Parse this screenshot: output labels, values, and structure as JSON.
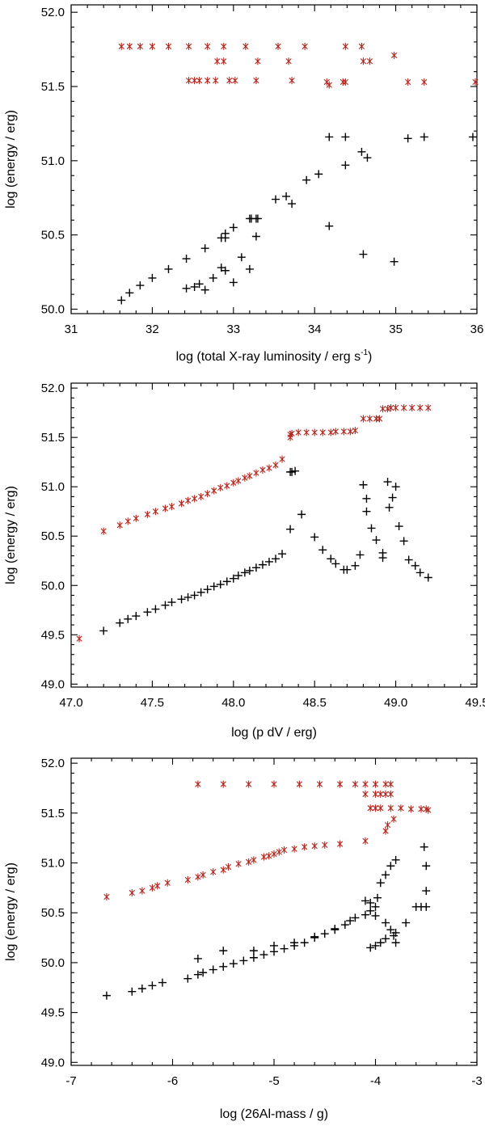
{
  "colors": {
    "series_star": "#b3261e",
    "series_plus": "#000000"
  },
  "chart_data": [
    {
      "type": "scatter",
      "title": "",
      "xlabel": "log (total X-ray luminosity / erg s",
      "xlabel_sup": "-1",
      "xlabel_end": ")",
      "ylabel": "log (energy / erg)",
      "xlim": [
        31,
        36
      ],
      "ylim": [
        49.97,
        52.05
      ],
      "xticks": [
        31,
        32,
        33,
        34,
        35,
        36
      ],
      "xtick_labels": [
        "31",
        "32",
        "33",
        "34",
        "35",
        "36"
      ],
      "yticks": [
        50.0,
        50.5,
        51.0,
        51.5,
        52.0
      ],
      "ytick_labels": [
        "50.0",
        "50.5",
        "51.0",
        "51.5",
        "52.0"
      ],
      "series": [
        {
          "name": "star",
          "marker": "star",
          "x": [
            31.62,
            31.72,
            31.85,
            32.0,
            32.2,
            32.45,
            32.68,
            32.88,
            33.15,
            33.55,
            33.88,
            34.38,
            34.58,
            32.8,
            32.88,
            33.3,
            33.68,
            34.6,
            34.68,
            34.98,
            32.45,
            32.52,
            32.58,
            32.68,
            32.78,
            32.95,
            33.02,
            33.28,
            33.72,
            34.15,
            34.18,
            34.35,
            34.38,
            35.15,
            35.35,
            35.98
          ],
          "y": [
            51.77,
            51.77,
            51.77,
            51.77,
            51.77,
            51.77,
            51.77,
            51.77,
            51.77,
            51.77,
            51.77,
            51.77,
            51.77,
            51.67,
            51.67,
            51.67,
            51.67,
            51.67,
            51.67,
            51.71,
            51.54,
            51.54,
            51.54,
            51.54,
            51.54,
            51.54,
            51.54,
            51.54,
            51.54,
            51.53,
            51.51,
            51.53,
            51.53,
            51.53,
            51.53,
            51.53
          ]
        },
        {
          "name": "plus",
          "marker": "plus",
          "x": [
            31.62,
            31.72,
            31.85,
            32.0,
            32.2,
            32.42,
            32.65,
            32.85,
            33.0,
            33.2,
            33.28,
            33.52,
            33.65,
            33.72,
            33.9,
            34.05,
            34.18,
            34.38,
            34.58,
            34.65,
            35.15,
            35.35,
            35.95,
            32.42,
            32.52,
            32.58,
            32.65,
            32.75,
            32.85,
            32.9,
            33.0,
            33.1,
            33.2,
            33.28,
            34.18,
            34.6,
            34.98,
            32.9,
            32.9,
            33.22,
            33.3,
            34.38
          ],
          "y": [
            50.06,
            50.11,
            50.16,
            50.21,
            50.27,
            50.34,
            50.41,
            50.48,
            50.55,
            50.61,
            50.61,
            50.74,
            50.76,
            50.71,
            50.87,
            50.91,
            51.16,
            51.16,
            51.06,
            51.02,
            51.15,
            51.16,
            51.16,
            50.14,
            50.15,
            50.17,
            50.13,
            50.21,
            50.28,
            50.26,
            50.18,
            50.35,
            50.27,
            50.49,
            50.56,
            50.37,
            50.32,
            50.48,
            50.51,
            50.61,
            50.61,
            50.97
          ]
        }
      ]
    },
    {
      "type": "scatter",
      "title": "",
      "xlabel": "log (p dV / erg)",
      "ylabel": "log (energy / erg)",
      "xlim": [
        47.0,
        49.5
      ],
      "ylim": [
        48.97,
        52.05
      ],
      "xticks": [
        47.0,
        47.5,
        48.0,
        48.5,
        49.0,
        49.5
      ],
      "xtick_labels": [
        "47.0",
        "47.5",
        "48.0",
        "48.5",
        "49.0",
        "49.5"
      ],
      "yticks": [
        49.0,
        49.5,
        50.0,
        50.5,
        51.0,
        51.5,
        52.0
      ],
      "ytick_labels": [
        "49.0",
        "49.5",
        "50.0",
        "50.5",
        "51.0",
        "51.5",
        "52.0"
      ],
      "series": [
        {
          "name": "star",
          "marker": "star",
          "x": [
            47.05,
            47.2,
            47.3,
            47.35,
            47.4,
            47.47,
            47.52,
            47.58,
            47.62,
            47.68,
            47.72,
            47.76,
            47.8,
            47.84,
            47.88,
            47.92,
            47.96,
            48.0,
            48.03,
            48.07,
            48.1,
            48.14,
            48.18,
            48.22,
            48.26,
            48.3,
            48.35,
            48.35,
            48.36,
            48.4,
            48.45,
            48.5,
            48.55,
            48.6,
            48.63,
            48.68,
            48.72,
            48.75,
            48.8,
            48.84,
            48.88,
            48.9,
            48.92,
            48.95,
            48.97,
            49.0,
            49.05,
            49.1,
            49.15,
            49.2
          ],
          "y": [
            49.46,
            50.55,
            50.61,
            50.65,
            50.68,
            50.72,
            50.75,
            50.78,
            50.8,
            50.83,
            50.86,
            50.88,
            50.9,
            50.93,
            50.96,
            50.99,
            51.01,
            51.04,
            51.06,
            51.09,
            51.11,
            51.14,
            51.17,
            51.19,
            51.22,
            51.28,
            51.5,
            51.53,
            51.54,
            51.55,
            51.55,
            51.55,
            51.55,
            51.55,
            51.56,
            51.56,
            51.56,
            51.57,
            51.69,
            51.69,
            51.69,
            51.69,
            51.79,
            51.79,
            51.8,
            51.8,
            51.8,
            51.8,
            51.8,
            51.8
          ],
          "note": ""
        },
        {
          "name": "plus",
          "marker": "plus",
          "x": [
            47.2,
            47.3,
            47.35,
            47.4,
            47.47,
            47.52,
            47.58,
            47.62,
            47.68,
            47.72,
            47.76,
            47.8,
            47.84,
            47.88,
            47.92,
            47.96,
            48.0,
            48.03,
            48.07,
            48.1,
            48.14,
            48.18,
            48.22,
            48.26,
            48.3,
            48.35,
            48.35,
            48.36,
            48.38,
            48.42,
            48.5,
            48.55,
            48.6,
            48.63,
            48.68,
            48.7,
            48.75,
            48.78,
            48.8,
            48.82,
            48.82,
            48.85,
            48.88,
            48.92,
            48.92,
            48.95,
            48.96,
            48.98,
            49.0,
            49.02,
            49.05,
            49.08,
            49.12,
            49.15,
            49.2
          ],
          "y": [
            49.54,
            49.62,
            49.66,
            49.69,
            49.73,
            49.76,
            49.8,
            49.83,
            49.86,
            49.88,
            49.9,
            49.93,
            49.96,
            49.99,
            50.01,
            50.04,
            50.07,
            50.1,
            50.13,
            50.15,
            50.18,
            50.21,
            50.24,
            50.27,
            50.32,
            50.57,
            51.15,
            51.15,
            51.16,
            50.72,
            50.49,
            50.36,
            50.27,
            50.22,
            50.16,
            50.16,
            50.2,
            50.31,
            51.02,
            50.75,
            50.88,
            50.58,
            50.46,
            50.33,
            50.28,
            51.05,
            50.79,
            50.89,
            51.0,
            50.6,
            50.45,
            50.26,
            50.2,
            50.13,
            50.08
          ],
          "note": ""
        }
      ]
    },
    {
      "type": "scatter",
      "title": "",
      "xlabel": "log (26Al-mass / g)",
      "ylabel": "log (energy / erg)",
      "xlim": [
        -7,
        -3
      ],
      "ylim": [
        48.97,
        52.05
      ],
      "xticks": [
        -7,
        -6,
        -5,
        -4,
        -3
      ],
      "xtick_labels": [
        "-7",
        "-6",
        "-5",
        "-4",
        "-3"
      ],
      "yticks": [
        49.0,
        49.5,
        50.0,
        50.5,
        51.0,
        51.5,
        52.0
      ],
      "ytick_labels": [
        "49.0",
        "49.5",
        "50.0",
        "50.5",
        "51.0",
        "51.5",
        "52.0"
      ],
      "series": [
        {
          "name": "star",
          "marker": "star",
          "x": [
            -6.65,
            -6.4,
            -6.3,
            -6.2,
            -6.15,
            -6.05,
            -5.85,
            -5.75,
            -5.7,
            -5.6,
            -5.5,
            -5.45,
            -5.35,
            -5.25,
            -5.2,
            -5.1,
            -5.05,
            -5.0,
            -4.95,
            -4.9,
            -4.8,
            -4.7,
            -4.6,
            -4.5,
            -4.35,
            -4.1,
            -3.9,
            -3.88,
            -3.82,
            -5.75,
            -5.5,
            -5.25,
            -5.0,
            -4.75,
            -4.55,
            -4.35,
            -4.2,
            -4.1,
            -4.0,
            -3.9,
            -3.85,
            -4.1,
            -4.0,
            -3.95,
            -3.9,
            -3.85,
            -4.05,
            -4.0,
            -3.95,
            -3.85,
            -3.75,
            -3.65,
            -3.55,
            -3.5,
            -3.48
          ],
          "y": [
            50.66,
            50.7,
            50.72,
            50.75,
            50.77,
            50.8,
            50.83,
            50.86,
            50.88,
            50.91,
            50.93,
            50.96,
            50.99,
            51.01,
            51.03,
            51.06,
            51.07,
            51.09,
            51.11,
            51.13,
            51.14,
            51.16,
            51.17,
            51.18,
            51.19,
            51.22,
            51.32,
            51.38,
            51.44,
            51.79,
            51.79,
            51.79,
            51.79,
            51.79,
            51.79,
            51.79,
            51.79,
            51.79,
            51.79,
            51.79,
            51.79,
            51.69,
            51.69,
            51.69,
            51.69,
            51.69,
            51.55,
            51.55,
            51.55,
            51.55,
            51.55,
            51.54,
            51.54,
            51.54,
            51.53
          ]
        },
        {
          "name": "plus",
          "marker": "plus",
          "x": [
            -6.65,
            -6.4,
            -6.3,
            -6.2,
            -6.1,
            -5.85,
            -5.75,
            -5.7,
            -5.6,
            -5.5,
            -5.4,
            -5.3,
            -5.2,
            -5.1,
            -5.0,
            -4.9,
            -4.8,
            -4.7,
            -4.6,
            -4.5,
            -4.4,
            -4.3,
            -4.2,
            -4.1,
            -4.05,
            -4.0,
            -3.98,
            -3.95,
            -3.9,
            -3.85,
            -3.8,
            -5.75,
            -5.5,
            -5.2,
            -5.0,
            -4.8,
            -4.6,
            -4.4,
            -4.25,
            -4.1,
            -4.05,
            -4.0,
            -3.9,
            -3.85,
            -3.82,
            -3.8,
            -4.05,
            -4.0,
            -3.95,
            -3.9,
            -3.8,
            -3.7,
            -3.6,
            -3.55,
            -3.5,
            -3.52,
            -3.5,
            -3.5
          ],
          "y": [
            49.67,
            49.71,
            49.74,
            49.77,
            49.8,
            49.84,
            49.88,
            49.9,
            49.93,
            49.96,
            49.99,
            50.02,
            50.05,
            50.08,
            50.11,
            50.14,
            50.17,
            50.2,
            50.25,
            50.29,
            50.33,
            50.38,
            50.45,
            50.62,
            50.6,
            50.56,
            50.65,
            50.8,
            50.88,
            50.97,
            51.03,
            50.04,
            50.12,
            50.12,
            50.17,
            50.2,
            50.26,
            50.34,
            50.42,
            50.48,
            50.52,
            50.47,
            50.4,
            50.33,
            50.27,
            50.2,
            50.15,
            50.17,
            50.2,
            50.24,
            50.3,
            50.4,
            50.56,
            50.56,
            50.56,
            51.16,
            50.97,
            50.72
          ]
        }
      ]
    }
  ]
}
